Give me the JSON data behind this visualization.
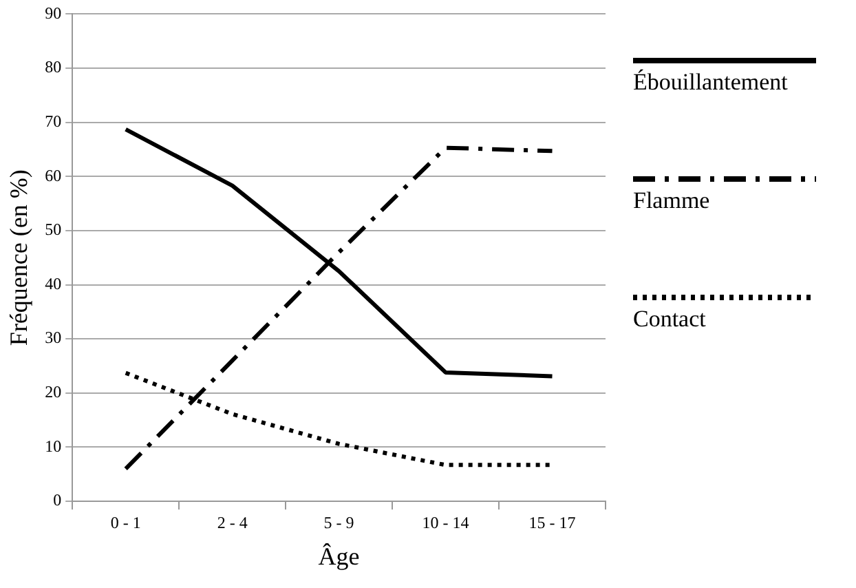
{
  "chart_data": {
    "type": "line",
    "xlabel": "Âge",
    "ylabel": "Fréquence (en %)",
    "categories": [
      "0 - 1",
      "2 - 4",
      "5 - 9",
      "10 - 14",
      "15 - 17"
    ],
    "series": [
      {
        "name": "Ébouillantement",
        "color": "#000000",
        "line_style": "solid",
        "values": [
          68.7,
          58.3,
          42.5,
          23.8,
          23.1
        ]
      },
      {
        "name": "Flamme",
        "color": "#000000",
        "line_style": "dashdot",
        "values": [
          6.0,
          26,
          46,
          65.3,
          64.7
        ]
      },
      {
        "name": "Contact",
        "color": "#000000",
        "line_style": "dotted",
        "values": [
          23.7,
          16.1,
          10.6,
          6.7,
          6.7
        ]
      }
    ],
    "ylim": [
      0,
      90
    ],
    "yticks": [
      0,
      10,
      20,
      30,
      40,
      50,
      60,
      70,
      80,
      90
    ],
    "grid": "y",
    "legend": "right",
    "marker": "none"
  }
}
